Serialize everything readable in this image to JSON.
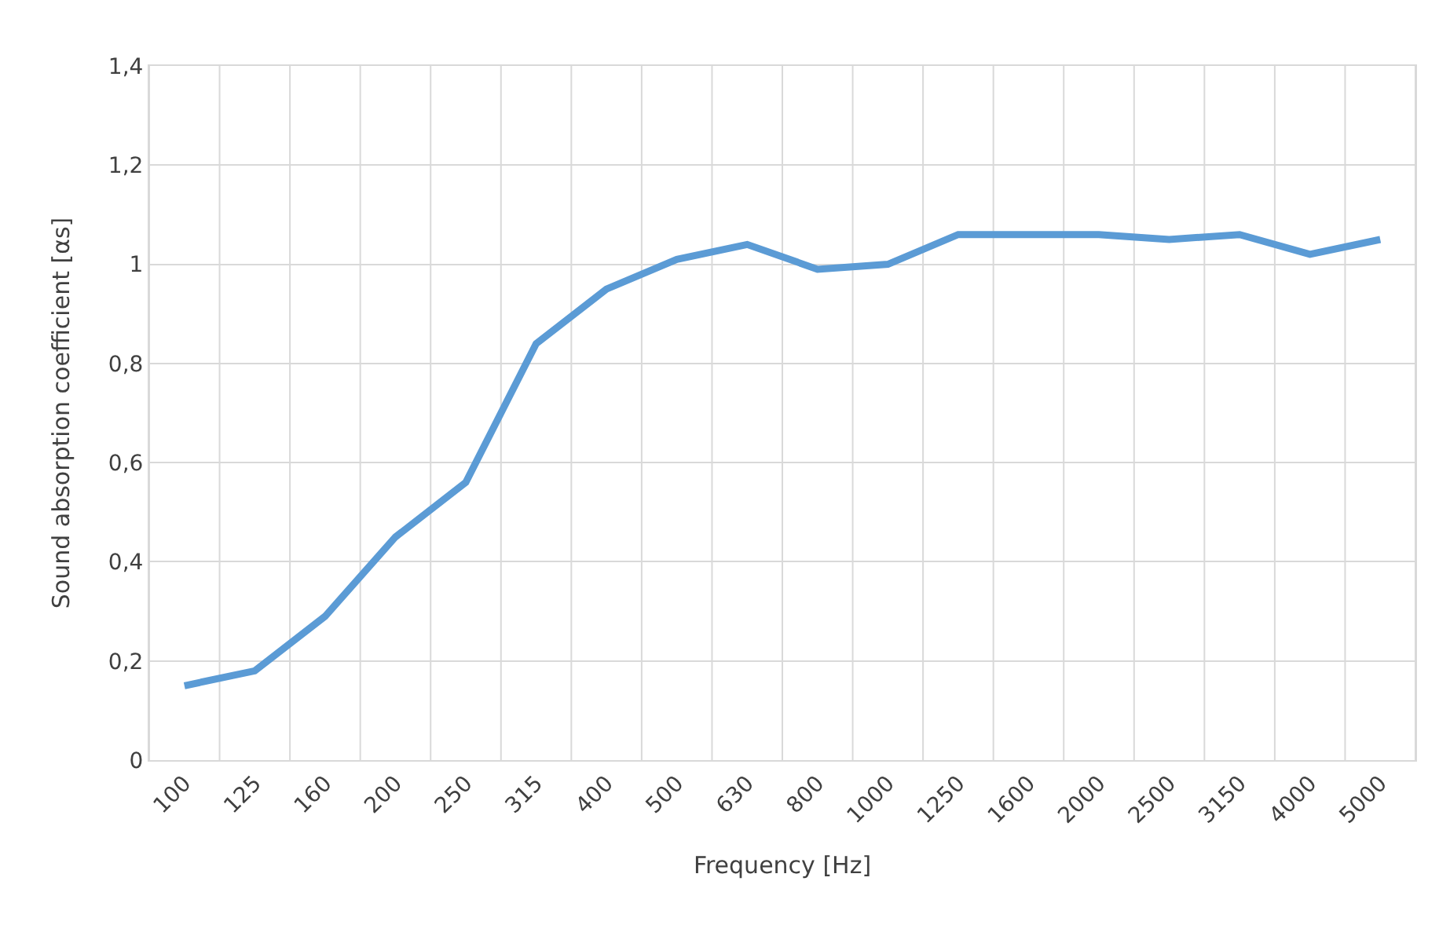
{
  "chart_data": {
    "type": "line",
    "xlabel": "Frequency [Hz]",
    "ylabel": "Sound absorption coefficient [αs]",
    "categories": [
      "100",
      "125",
      "160",
      "200",
      "250",
      "315",
      "400",
      "500",
      "630",
      "800",
      "1000",
      "1250",
      "1600",
      "2000",
      "2500",
      "3150",
      "4000",
      "5000"
    ],
    "series": [
      {
        "color": "#5b9bd5",
        "values": [
          0.15,
          0.18,
          0.29,
          0.45,
          0.56,
          0.84,
          0.95,
          1.01,
          1.04,
          0.99,
          1.0,
          1.06,
          1.06,
          1.06,
          1.05,
          1.06,
          1.02,
          1.05
        ]
      }
    ],
    "ylim": [
      0,
      1.4
    ],
    "yticks": [
      0,
      {
        "value": 0.2,
        "label": "0,2"
      },
      {
        "value": 0.4,
        "label": "0,4"
      },
      {
        "value": 0.6,
        "label": "0,6"
      },
      {
        "value": 0.8,
        "label": "0,8"
      },
      1,
      {
        "value": 1.2,
        "label": "1,2"
      },
      {
        "value": 1.4,
        "label": "1,4"
      }
    ],
    "grid": true,
    "marker": "none",
    "line_style": "solid"
  }
}
